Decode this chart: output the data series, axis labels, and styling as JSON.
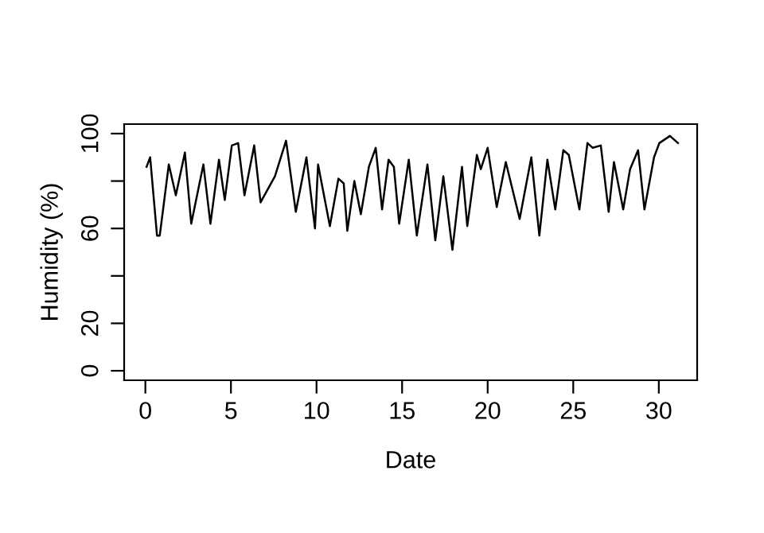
{
  "chart_data": {
    "type": "line",
    "xlabel": "Date",
    "ylabel": "Humidity (%)",
    "xlim": [
      -1.24,
      32.24
    ],
    "ylim": [
      -4,
      104
    ],
    "xticks": [
      0,
      5,
      10,
      15,
      20,
      25,
      30
    ],
    "yticks": [
      0,
      20,
      {
        "value": 40,
        "label": null
      },
      60,
      {
        "value": 80,
        "label": null
      },
      100
    ],
    "grid": false,
    "legend": false,
    "marker": "none",
    "line_style": "solid",
    "series": [
      {
        "color": "#000000",
        "x": [
          0.07,
          0.28,
          0.68,
          0.84,
          1.37,
          1.78,
          2.31,
          2.68,
          3.39,
          3.8,
          4.3,
          4.64,
          5.05,
          5.42,
          5.79,
          6.36,
          6.73,
          7.57,
          8.22,
          8.79,
          9.41,
          9.91,
          10.09,
          10.78,
          11.28,
          11.59,
          11.8,
          12.21,
          12.59,
          13.06,
          13.46,
          13.83,
          14.21,
          14.52,
          14.83,
          15.39,
          15.86,
          16.48,
          16.94,
          17.41,
          17.94,
          18.5,
          18.81,
          19.37,
          19.6,
          20.0,
          20.53,
          21.06,
          21.87,
          22.55,
          23.02,
          23.49,
          23.95,
          24.42,
          24.74,
          25.36,
          25.83,
          26.14,
          26.61,
          27.07,
          27.38,
          27.92,
          28.32,
          28.79,
          29.16,
          29.72,
          30.03,
          30.65,
          31.12
        ],
        "values": [
          86,
          90,
          57,
          57,
          87,
          74,
          92,
          62,
          87,
          62,
          89,
          72,
          95,
          96,
          74,
          95,
          71,
          82,
          97,
          67,
          90,
          60,
          87,
          61,
          81,
          79,
          59,
          80,
          66,
          86,
          94,
          68,
          89,
          86,
          62,
          89,
          57,
          87,
          55,
          82,
          51,
          86,
          61,
          91,
          85,
          94,
          69,
          88,
          64,
          90,
          57,
          89,
          68,
          93,
          91,
          68,
          96,
          94,
          95,
          67,
          88,
          68,
          85,
          93,
          68,
          90,
          96,
          99,
          96
        ]
      }
    ]
  }
}
